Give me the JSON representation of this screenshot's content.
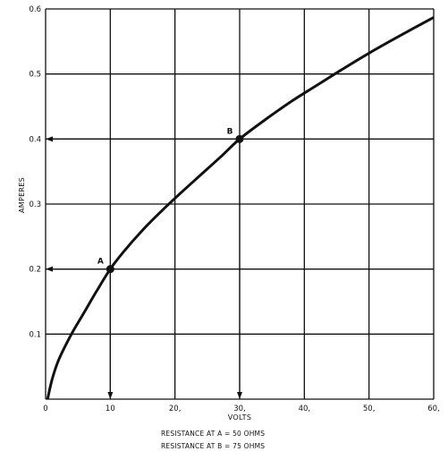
{
  "chart_data": {
    "type": "line",
    "xlabel": "VOLTS",
    "ylabel": "AMPERES",
    "xlim": [
      0,
      60
    ],
    "ylim": [
      0,
      0.6
    ],
    "grid": true,
    "x_ticks": [
      {
        "value": 0,
        "label": "0"
      },
      {
        "value": 10,
        "label": "10"
      },
      {
        "value": 20,
        "label": "20,"
      },
      {
        "value": 30,
        "label": "30,"
      },
      {
        "value": 40,
        "label": "40,"
      },
      {
        "value": 50,
        "label": "50,"
      },
      {
        "value": 60,
        "label": "60,"
      }
    ],
    "y_ticks": [
      {
        "value": 0.1,
        "label": "0.1"
      },
      {
        "value": 0.2,
        "label": "0.2"
      },
      {
        "value": 0.3,
        "label": "0.3"
      },
      {
        "value": 0.4,
        "label": "0.4"
      },
      {
        "value": 0.5,
        "label": "0.5"
      },
      {
        "value": 0.6,
        "label": "0.6"
      }
    ],
    "series": [
      {
        "x": [
          0.3,
          1,
          2,
          4,
          6,
          8,
          10,
          12,
          15,
          18,
          21,
          24,
          27,
          30,
          34,
          38,
          42,
          46,
          50,
          55,
          60
        ],
        "y": [
          0.0,
          0.03,
          0.06,
          0.1,
          0.134,
          0.168,
          0.2,
          0.226,
          0.26,
          0.29,
          0.318,
          0.345,
          0.372,
          0.4,
          0.43,
          0.458,
          0.483,
          0.508,
          0.532,
          0.56,
          0.587
        ]
      }
    ],
    "points": [
      {
        "label": "A",
        "x": 10,
        "y": 0.2
      },
      {
        "label": "B",
        "x": 30,
        "y": 0.4
      }
    ],
    "annotations": [
      "RESISTANCE AT A = 50 OHMS",
      "RESISTANCE AT B = 75 OHMS"
    ]
  }
}
